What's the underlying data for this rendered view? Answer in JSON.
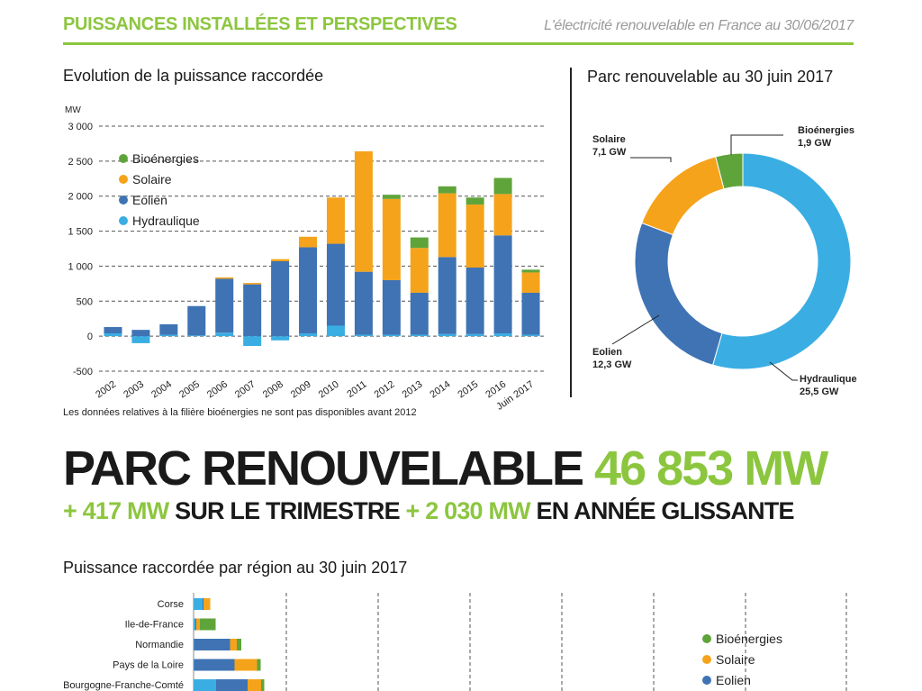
{
  "header": {
    "title": "PUISSANCES INSTALLÉES ET PERSPECTIVES",
    "subtitle": "L'électricité renouvelable en France au 30/06/2017"
  },
  "colors": {
    "bioenergies": "#5fa43a",
    "solaire": "#f5a31a",
    "eolien": "#3f73b4",
    "hydraulique": "#3aaee3",
    "accent": "#8cc63f"
  },
  "legend": [
    {
      "key": "bioenergies",
      "label": "Bioénergies"
    },
    {
      "key": "solaire",
      "label": "Solaire"
    },
    {
      "key": "eolien",
      "label": "Eolien"
    },
    {
      "key": "hydraulique",
      "label": "Hydraulique"
    }
  ],
  "bar_note": "Les données relatives à la filière bioénergies ne sont pas disponibles avant 2012",
  "banner": {
    "line1_text": "PARC RENOUVELABLE ",
    "line1_value": "46 853 MW",
    "line2_v1": "+ 417 MW",
    "line2_t1": " SUR LE TRIMESTRE ",
    "line2_v2": "+ 2 030 MW",
    "line2_t2": " EN ANNÉE GLISSANTE"
  },
  "region_title": "Puissance raccordée par région au 30 juin 2017",
  "chart_data": [
    {
      "type": "bar",
      "title": "Evolution de la puissance raccordée",
      "ylabel": "MW",
      "ylim": [
        -500,
        3000
      ],
      "yticks": [
        -500,
        0,
        500,
        1000,
        1500,
        2000,
        2500,
        3000
      ],
      "ytick_labels": [
        "-500",
        "0",
        "500",
        "1 000",
        "1 500",
        "2 000",
        "2 500",
        "3 000"
      ],
      "grid": true,
      "legend_position": "top-left",
      "categories": [
        "2002",
        "2003",
        "2004",
        "2005",
        "2006",
        "2007",
        "2008",
        "2009",
        "2010",
        "2011",
        "2012",
        "2013",
        "2014",
        "2015",
        "2016",
        "Juin 2017"
      ],
      "series": [
        {
          "name": "Hydraulique",
          "key": "hydraulique",
          "values": [
            40,
            -100,
            20,
            10,
            50,
            -140,
            -60,
            40,
            150,
            20,
            20,
            20,
            30,
            30,
            40,
            20
          ]
        },
        {
          "name": "Eolien",
          "key": "eolien",
          "values": [
            90,
            90,
            150,
            420,
            770,
            740,
            1070,
            1230,
            1170,
            900,
            780,
            600,
            1100,
            950,
            1400,
            600
          ]
        },
        {
          "name": "Solaire",
          "key": "solaire",
          "values": [
            0,
            0,
            0,
            0,
            20,
            20,
            30,
            150,
            660,
            1720,
            1160,
            640,
            910,
            900,
            590,
            290
          ]
        },
        {
          "name": "Bioénergies",
          "key": "bioenergies",
          "values": [
            0,
            0,
            0,
            0,
            0,
            0,
            0,
            0,
            0,
            0,
            60,
            150,
            100,
            100,
            230,
            40
          ]
        }
      ]
    },
    {
      "type": "pie",
      "title": "Parc renouvelable au 30 juin 2017",
      "unit": "GW",
      "slices": [
        {
          "name": "Hydraulique",
          "key": "hydraulique",
          "value": 25.5,
          "label": "Hydraulique",
          "value_label": "25,5 GW"
        },
        {
          "name": "Eolien",
          "key": "eolien",
          "value": 12.3,
          "label": "Eolien",
          "value_label": "12,3 GW"
        },
        {
          "name": "Solaire",
          "key": "solaire",
          "value": 7.1,
          "label": "Solaire",
          "value_label": "7,1 GW"
        },
        {
          "name": "Bioénergies",
          "key": "bioenergies",
          "value": 1.9,
          "label": "Bioénergies",
          "value_label": "1,9 GW"
        }
      ]
    },
    {
      "type": "bar",
      "orientation": "horizontal",
      "title": "Puissance raccordée par région au 30 juin 2017",
      "unit": "MW",
      "grid": true,
      "categories": [
        "Corse",
        "Ile-de-France",
        "Normandie",
        "Pays de la Loire",
        "Bourgogne-Franche-Comté"
      ],
      "series": [
        {
          "name": "Hydraulique",
          "key": "hydraulique",
          "values": [
            200,
            40,
            10,
            10,
            500
          ]
        },
        {
          "name": "Eolien",
          "key": "eolien",
          "values": [
            20,
            20,
            800,
            900,
            700
          ]
        },
        {
          "name": "Solaire",
          "key": "solaire",
          "values": [
            150,
            80,
            150,
            500,
            300
          ]
        },
        {
          "name": "Bioénergies",
          "key": "bioenergies",
          "values": [
            0,
            350,
            100,
            80,
            70
          ]
        }
      ]
    }
  ]
}
